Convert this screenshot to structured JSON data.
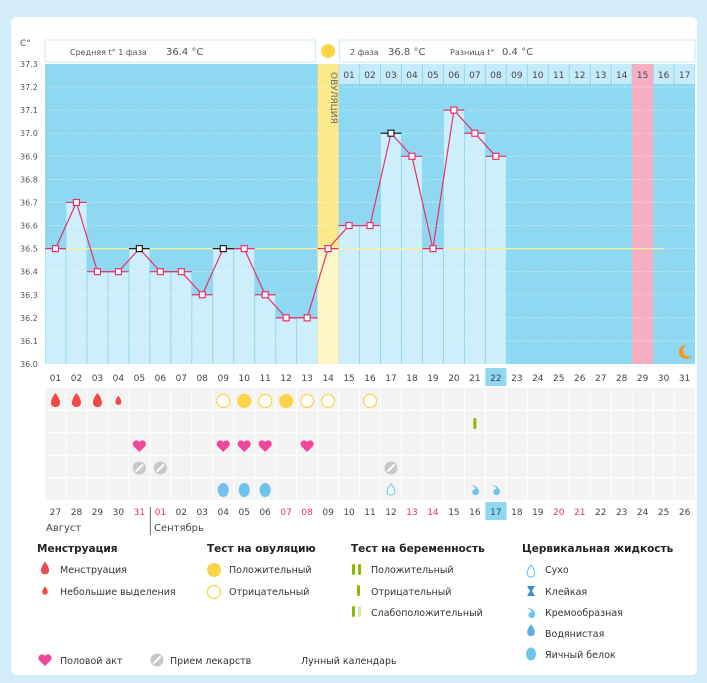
{
  "chart_data": {
    "type": "line",
    "title": "",
    "ylabel": "C°",
    "ylim": [
      36.0,
      37.3
    ],
    "yticks": [
      "37.3",
      "37.2",
      "37.1",
      "37.0",
      "36.9",
      "36.8",
      "36.7",
      "36.6",
      "36.5",
      "36.4",
      "36.3",
      "36.2",
      "36.1",
      "36.0"
    ],
    "cycle_days": [
      "01",
      "02",
      "03",
      "04",
      "05",
      "06",
      "07",
      "08",
      "09",
      "10",
      "11",
      "12",
      "13",
      "14",
      "15",
      "16",
      "17",
      "18",
      "19",
      "20",
      "21",
      "22",
      "23",
      "24",
      "25",
      "26",
      "27",
      "28",
      "29",
      "30",
      "31"
    ],
    "temperatures": [
      36.5,
      36.7,
      36.4,
      36.4,
      36.5,
      36.4,
      36.4,
      36.3,
      36.5,
      36.5,
      36.3,
      36.2,
      36.2,
      36.5,
      36.6,
      36.6,
      37.0,
      36.9,
      36.5,
      37.1,
      37.0,
      36.9,
      null,
      null,
      null,
      null,
      null,
      null,
      null,
      null,
      null
    ],
    "highlighted_points": [
      5,
      9,
      17
    ],
    "coverline": 36.5,
    "ovulation_day": 14,
    "ovulation_label": "ОВУЛЯЦИЯ",
    "expected_period_day": 29,
    "current_day": 22,
    "phase2_days": [
      "01",
      "02",
      "03",
      "04",
      "05",
      "06",
      "07",
      "08",
      "09",
      "10",
      "11",
      "12",
      "13",
      "14",
      "15",
      "16",
      "17"
    ],
    "phase2_highlight": "15",
    "phase1_label": "Средняя t° 1 фаза",
    "phase1_value": "36.4 °C",
    "phase2_label": "2 фаза",
    "phase2_value": "36.8 °C",
    "diff_label": "Разница t°",
    "diff_value": "0.4 °C",
    "calendar_dates": [
      "27",
      "28",
      "29",
      "30",
      "31",
      "01",
      "02",
      "03",
      "04",
      "05",
      "06",
      "07",
      "08",
      "09",
      "10",
      "11",
      "12",
      "13",
      "14",
      "15",
      "16",
      "17",
      "18",
      "19",
      "20",
      "21",
      "22",
      "23",
      "24",
      "25",
      "26"
    ],
    "calendar_red": [
      4,
      5,
      11,
      12,
      17,
      18,
      24,
      25
    ],
    "month_labels": [
      "Август",
      "Сентябрь"
    ],
    "menstruation": {
      "1": "heavy",
      "2": "heavy",
      "3": "heavy",
      "4": "light"
    },
    "ovulation_test": {
      "9": "neg",
      "10": "pos",
      "11": "neg",
      "12": "pos",
      "13": "neg",
      "14": "neg",
      "16": "neg"
    },
    "pregnancy_test": {
      "21": "neg"
    },
    "intercourse": [
      5,
      9,
      10,
      11,
      13
    ],
    "medication": [
      5,
      6,
      17
    ],
    "cervical_fluid": {
      "9": "egg",
      "10": "egg",
      "11": "egg",
      "17": "dry",
      "21": "creamy",
      "22": "creamy"
    },
    "moon_day": 31
  },
  "legend": {
    "menstruation": {
      "title": "Менструация",
      "items": [
        "Менструация",
        "Небольшие выделения"
      ]
    },
    "ovulation_test": {
      "title": "Тест на овуляцию",
      "items": [
        "Положительный",
        "Отрицательный"
      ]
    },
    "pregnancy_test": {
      "title": "Тест на беременность",
      "items": [
        "Положительный",
        "Отрицательный",
        "Слабоположительный"
      ]
    },
    "cervical": {
      "title": "Цервикальная жидкость",
      "items": [
        "Сухо",
        "Клейкая",
        "Кремообразная",
        "Водянистая",
        "Яичный белок"
      ]
    },
    "bottom": [
      "Половой акт",
      "Прием лекарств",
      "Лунный календарь"
    ]
  },
  "colors": {
    "bg": "#8fd8f2",
    "bar": "#cdeefb",
    "line": "#e8316a",
    "ovulation": "#fbe98a",
    "period": "#f7aec3",
    "yellow": "#fbd44a",
    "heart": "#f0479b",
    "drop": "#f04a4a",
    "blue": "#6ec3ef",
    "green": "#8cb800"
  }
}
